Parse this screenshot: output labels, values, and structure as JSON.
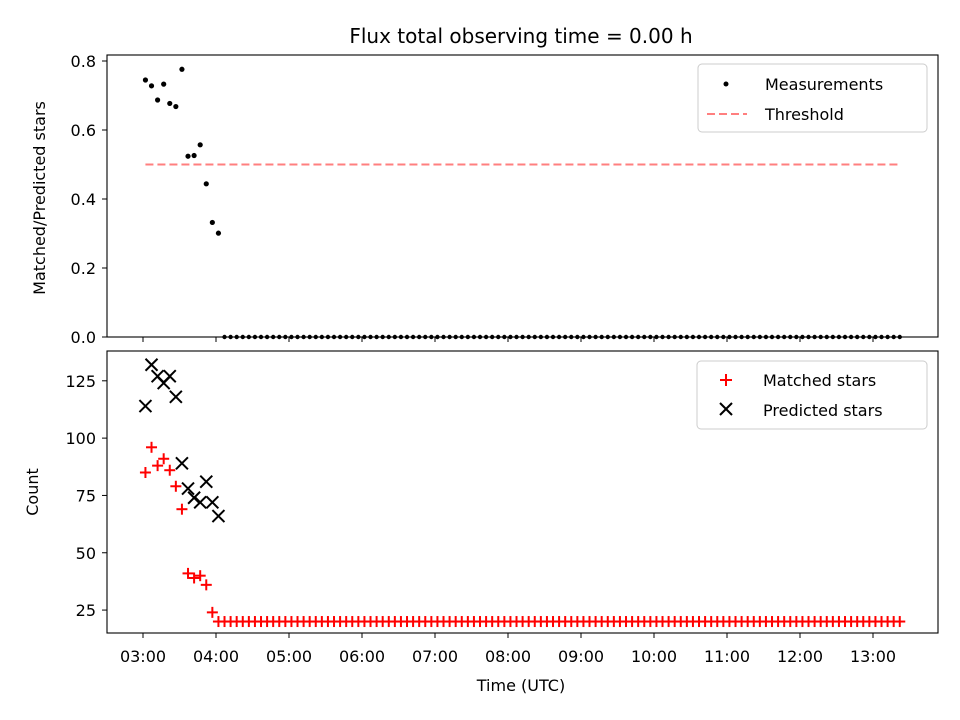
{
  "title": "Flux total observing time = 0.00 h",
  "chart_data": [
    {
      "type": "scatter",
      "panel": "top",
      "ylabel": "Matched/Predicted stars",
      "xlabel": "",
      "ylim": [
        0,
        0.8
      ],
      "yticks": [
        0.0,
        0.2,
        0.4,
        0.6,
        0.8
      ],
      "ytick_labels": [
        "0.0",
        "0.2",
        "0.4",
        "0.6",
        "0.8"
      ],
      "legend_position": "upper-right",
      "legend": [
        {
          "label": "Measurements",
          "marker": "dot",
          "color": "#000000"
        },
        {
          "label": "Threshold",
          "marker": "dashed-line",
          "color": "#ff7f7f"
        }
      ],
      "series": [
        {
          "name": "Measurements",
          "color": "#000000",
          "points": [
            [
              "03:02",
              0.745
            ],
            [
              "03:07",
              0.728
            ],
            [
              "03:12",
              0.687
            ],
            [
              "03:17",
              0.733
            ],
            [
              "03:22",
              0.677
            ],
            [
              "03:27",
              0.668
            ],
            [
              "03:32",
              0.776
            ],
            [
              "03:37",
              0.524
            ],
            [
              "03:42",
              0.526
            ],
            [
              "03:47",
              0.557
            ],
            [
              "03:52",
              0.444
            ],
            [
              "03:57",
              0.332
            ],
            [
              "04:02",
              0.301
            ]
          ],
          "zero_run": {
            "start": "04:07",
            "end": "13:22",
            "step_minutes": 5,
            "value": 0.0
          }
        },
        {
          "name": "Threshold",
          "color": "#ff7f7f",
          "line": {
            "x_start": "03:02",
            "x_end": "13:22",
            "y": 0.5
          }
        }
      ]
    },
    {
      "type": "scatter",
      "panel": "bottom",
      "ylabel": "Count",
      "xlabel": "Time (UTC)",
      "ylim": [
        15,
        138
      ],
      "yticks": [
        25,
        50,
        75,
        100,
        125
      ],
      "ytick_labels": [
        "25",
        "50",
        "75",
        "100",
        "125"
      ],
      "xtick_labels": [
        "03:00",
        "04:00",
        "05:00",
        "06:00",
        "07:00",
        "08:00",
        "09:00",
        "10:00",
        "11:00",
        "12:00",
        "13:00"
      ],
      "legend_position": "upper-right",
      "legend": [
        {
          "label": "Matched stars",
          "marker": "plus",
          "color": "#ff0000"
        },
        {
          "label": "Predicted stars",
          "marker": "x",
          "color": "#000000"
        }
      ],
      "series": [
        {
          "name": "Matched stars",
          "color": "#ff0000",
          "points": [
            [
              "03:02",
              85
            ],
            [
              "03:07",
              96
            ],
            [
              "03:12",
              88
            ],
            [
              "03:17",
              91
            ],
            [
              "03:22",
              86
            ],
            [
              "03:27",
              79
            ],
            [
              "03:32",
              69
            ],
            [
              "03:37",
              41
            ],
            [
              "03:42",
              39
            ],
            [
              "03:47",
              40
            ],
            [
              "03:52",
              36
            ],
            [
              "03:57",
              24
            ]
          ],
          "zero_run": {
            "start": "04:02",
            "end": "13:22",
            "step_minutes": 5,
            "value": 20
          }
        },
        {
          "name": "Predicted stars",
          "color": "#000000",
          "points": [
            [
              "03:02",
              114
            ],
            [
              "03:07",
              132
            ],
            [
              "03:12",
              127
            ],
            [
              "03:17",
              124
            ],
            [
              "03:22",
              127
            ],
            [
              "03:27",
              118
            ],
            [
              "03:32",
              89
            ],
            [
              "03:37",
              78
            ],
            [
              "03:42",
              74
            ],
            [
              "03:47",
              72
            ],
            [
              "03:52",
              81
            ],
            [
              "03:57",
              72
            ],
            [
              "04:02",
              66
            ]
          ]
        }
      ]
    }
  ]
}
